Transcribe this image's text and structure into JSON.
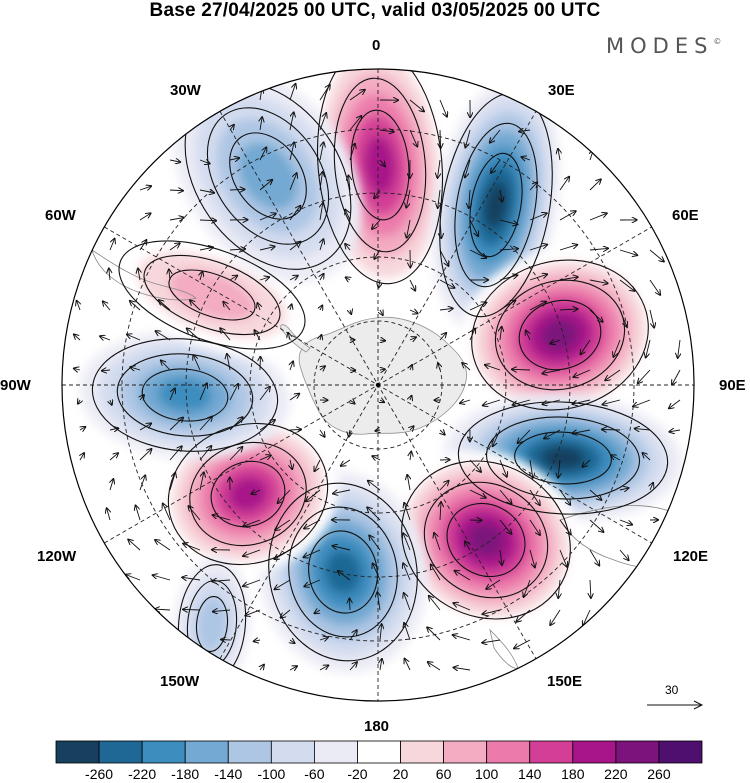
{
  "title": "Base 27/04/2025 00 UTC, valid 03/05/2025 00 UTC",
  "brand": {
    "name": "MODES",
    "mark": "©"
  },
  "longitude_labels": {
    "lon_0": "0",
    "lon_30e": "30E",
    "lon_60e": "60E",
    "lon_90e": "90E",
    "lon_120e": "120E",
    "lon_150e": "150E",
    "lon_180": "180",
    "lon_150w": "150W",
    "lon_120w": "120W",
    "lon_90w": "90W",
    "lon_60w": "60W",
    "lon_30w": "30W"
  },
  "reference_vector": {
    "label": "30"
  },
  "colorbar": {
    "colors": [
      "#16405e",
      "#1f6895",
      "#3d8dbf",
      "#73a9d2",
      "#adc6e4",
      "#d3dcef",
      "#ebebf5",
      "#ffffff",
      "#f7d7dc",
      "#f3acc2",
      "#ec7bab",
      "#d33f96",
      "#a8148a",
      "#7c127c",
      "#4f0f6f"
    ],
    "labels": [
      "-260",
      "-220",
      "-180",
      "-140",
      "-100",
      "-60",
      "-20",
      "20",
      "60",
      "100",
      "140",
      "180",
      "220",
      "260"
    ]
  },
  "map": {
    "projection": "south polar stereographic",
    "field": "geopotential height anomaly with wind vectors",
    "anomaly_centers": [
      {
        "sign": "positive",
        "level": 220
      },
      {
        "sign": "negative",
        "level": -260
      },
      {
        "sign": "positive",
        "level": 260
      },
      {
        "sign": "negative",
        "level": -260
      },
      {
        "sign": "positive",
        "level": 260
      },
      {
        "sign": "negative",
        "level": -220
      },
      {
        "sign": "positive",
        "level": 220
      },
      {
        "sign": "negative",
        "level": -180
      },
      {
        "sign": "positive",
        "level": 100
      },
      {
        "sign": "negative",
        "level": -140
      },
      {
        "sign": "negative",
        "level": -100
      }
    ],
    "colors": {
      "land": "#ebebeb",
      "graticule": "#222222",
      "contour": "#111111",
      "vector": "#111111"
    }
  }
}
